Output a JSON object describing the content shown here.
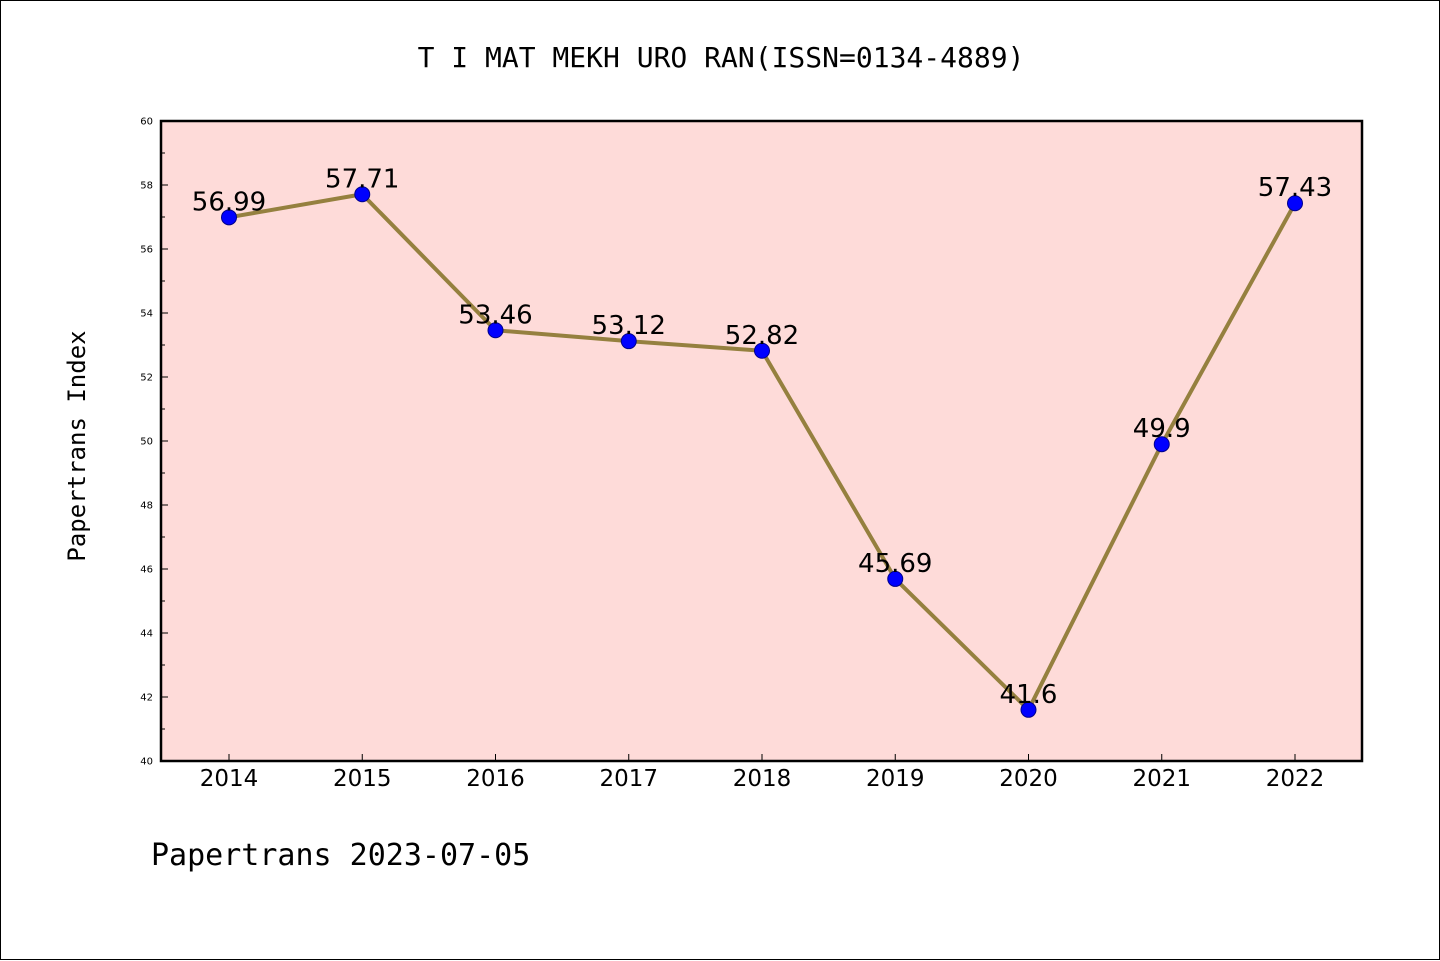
{
  "chart_data": {
    "type": "line",
    "title": "T I MAT MEKH URO RAN(ISSN=0134-4889)",
    "ylabel": "Papertrans Index",
    "xlabel": "",
    "x": [
      "2014",
      "2015",
      "2016",
      "2017",
      "2018",
      "2019",
      "2020",
      "2021",
      "2022"
    ],
    "values": [
      56.99,
      57.71,
      53.46,
      53.12,
      52.82,
      45.69,
      41.6,
      49.9,
      57.43
    ],
    "data_labels": [
      "56.99",
      "57.71",
      "53.46",
      "53.12",
      "52.82",
      "45.69",
      "41.6",
      "49.9",
      "57.43"
    ],
    "ylim": [
      40,
      60
    ],
    "yticks": [
      "40",
      "42",
      "44",
      "46",
      "48",
      "50",
      "52",
      "54",
      "56",
      "58",
      "60"
    ],
    "grid": false,
    "colors": {
      "plot_background": "#fedbd9",
      "line": "#95803f",
      "marker": "#0000ff",
      "marker_edge": "#00008b"
    }
  },
  "footer": {
    "text": "Papertrans 2023-07-05"
  }
}
